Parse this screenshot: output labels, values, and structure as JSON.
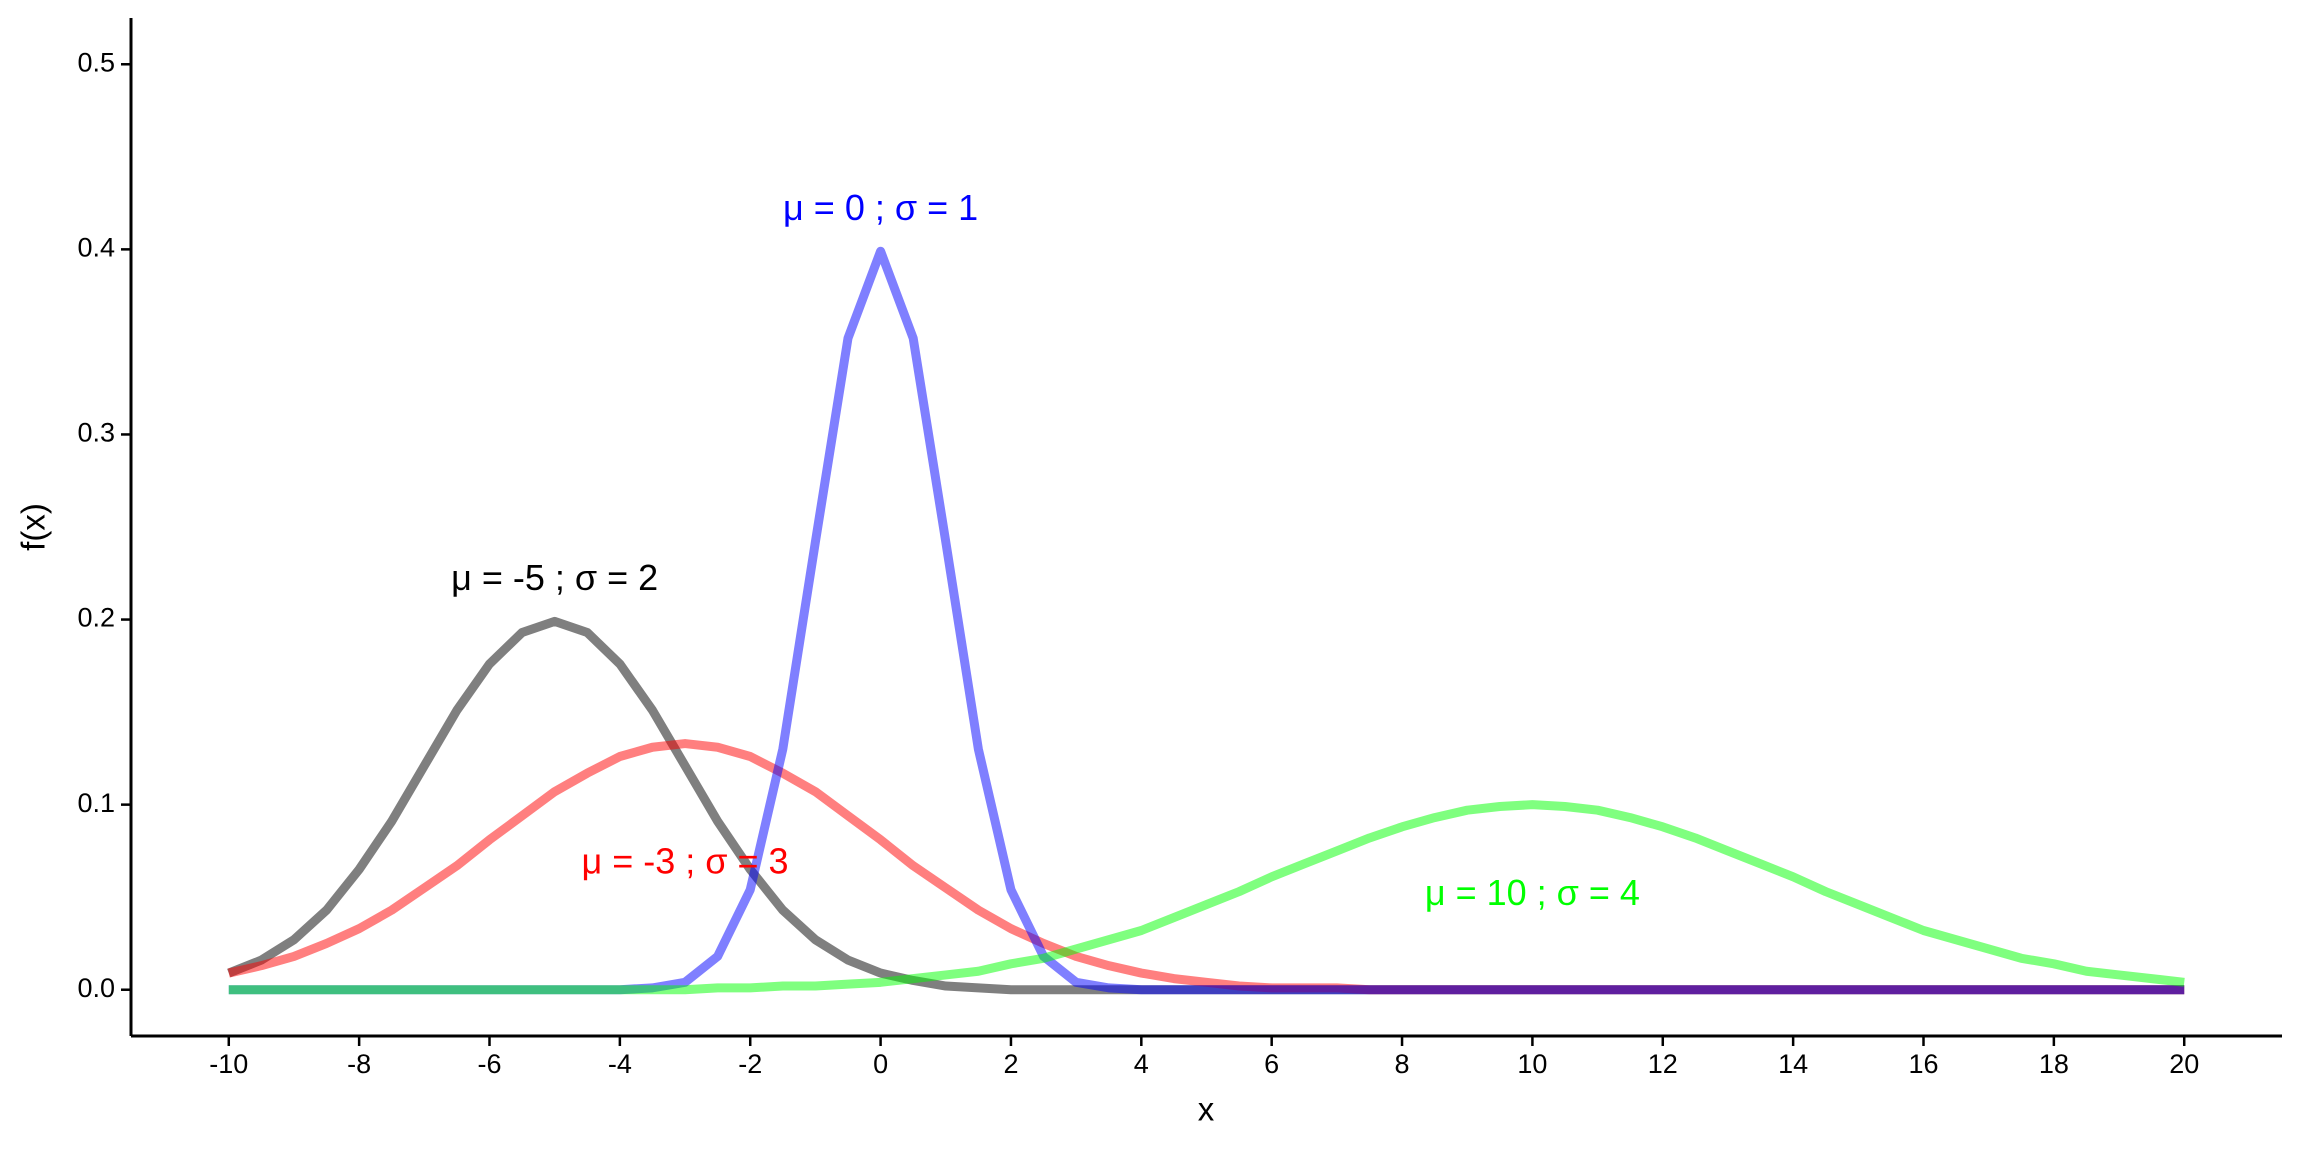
{
  "chart_data": {
    "type": "line",
    "x_label": "x",
    "y_label": "f(x)",
    "x": [
      -10,
      -9.5,
      -9,
      -8.5,
      -8,
      -7.5,
      -7,
      -6.5,
      -6,
      -5.5,
      -5,
      -4.5,
      -4,
      -3.5,
      -3,
      -2.5,
      -2,
      -1.5,
      -1,
      -0.5,
      0,
      0.5,
      1,
      1.5,
      2,
      2.5,
      3,
      3.5,
      4,
      4.5,
      5,
      5.5,
      6,
      6.5,
      7,
      7.5,
      8,
      8.5,
      9,
      9.5,
      10,
      10.5,
      11,
      11.5,
      12,
      12.5,
      13,
      13.5,
      14,
      14.5,
      15,
      15.5,
      16,
      16.5,
      17,
      17.5,
      18,
      18.5,
      19,
      19.5,
      20
    ],
    "series": [
      {
        "color": "#000000",
        "opacity": 0.5,
        "values": [
          0.009,
          0.016,
          0.027,
          0.043,
          0.065,
          0.091,
          0.121,
          0.151,
          0.176,
          0.193,
          0.199,
          0.193,
          0.176,
          0.151,
          0.121,
          0.091,
          0.065,
          0.043,
          0.027,
          0.016,
          0.009,
          0.005,
          0.002,
          0.001,
          0,
          0,
          0,
          0,
          0,
          0,
          0,
          0,
          0,
          0,
          0,
          0,
          0,
          0,
          0,
          0,
          0,
          0,
          0,
          0,
          0,
          0,
          0,
          0,
          0,
          0,
          0,
          0,
          0,
          0,
          0,
          0,
          0,
          0,
          0,
          0,
          0
        ]
      },
      {
        "color": "#ff0000",
        "opacity": 0.5,
        "values": [
          0.009,
          0.013,
          0.018,
          0.025,
          0.033,
          0.043,
          0.055,
          0.067,
          0.081,
          0.094,
          0.107,
          0.117,
          0.126,
          0.131,
          0.133,
          0.131,
          0.126,
          0.117,
          0.107,
          0.094,
          0.081,
          0.067,
          0.055,
          0.043,
          0.033,
          0.025,
          0.018,
          0.013,
          0.009,
          0.006,
          0.004,
          0.002,
          0.001,
          0.001,
          0.001,
          0,
          0,
          0,
          0,
          0,
          0,
          0,
          0,
          0,
          0,
          0,
          0,
          0,
          0,
          0,
          0,
          0,
          0,
          0,
          0,
          0,
          0,
          0,
          0,
          0,
          0
        ]
      },
      {
        "color": "#0000ff",
        "opacity": 0.5,
        "values": [
          0,
          0,
          0,
          0,
          0,
          0,
          0,
          0,
          0,
          0,
          0,
          0,
          0,
          0.001,
          0.004,
          0.018,
          0.054,
          0.13,
          0.242,
          0.352,
          0.399,
          0.352,
          0.242,
          0.13,
          0.054,
          0.018,
          0.004,
          0.001,
          0,
          0,
          0,
          0,
          0,
          0,
          0,
          0,
          0,
          0,
          0,
          0,
          0,
          0,
          0,
          0,
          0,
          0,
          0,
          0,
          0,
          0,
          0,
          0,
          0,
          0,
          0,
          0,
          0,
          0,
          0,
          0,
          0
        ]
      },
      {
        "color": "#00ff00",
        "opacity": 0.5,
        "values": [
          0,
          0,
          0,
          0,
          0,
          0,
          0,
          0,
          0,
          0,
          0,
          0,
          0,
          0,
          0,
          0.001,
          0.001,
          0.002,
          0.002,
          0.003,
          0.004,
          0.006,
          0.008,
          0.01,
          0.014,
          0.017,
          0.022,
          0.027,
          0.032,
          0.039,
          0.046,
          0.053,
          0.061,
          0.068,
          0.075,
          0.082,
          0.088,
          0.093,
          0.097,
          0.099,
          0.1,
          0.099,
          0.097,
          0.093,
          0.088,
          0.082,
          0.075,
          0.068,
          0.061,
          0.053,
          0.046,
          0.039,
          0.032,
          0.027,
          0.022,
          0.017,
          0.014,
          0.01,
          0.008,
          0.006,
          0.004
        ]
      }
    ],
    "annotations": [
      {
        "text": "μ = -5 ; σ = 2",
        "x": -5,
        "y": 0.221,
        "color": "#000000"
      },
      {
        "text": "μ = -3 ; σ = 3",
        "x": -3,
        "y": 0.068,
        "color": "#ff0000"
      },
      {
        "text": "μ = 0 ; σ = 1",
        "x": 0,
        "y": 0.421,
        "color": "#0000ff"
      },
      {
        "text": "μ = 10 ; σ = 4",
        "x": 10,
        "y": 0.051,
        "color": "#00ff00"
      }
    ],
    "xlim": [
      -11.5,
      21.5
    ],
    "ylim": [
      -0.025,
      0.525
    ],
    "xticks": [
      -10,
      -8,
      -6,
      -4,
      -2,
      0,
      2,
      4,
      6,
      8,
      10,
      12,
      14,
      16,
      18,
      20
    ],
    "yticks": [
      {
        "value": 0,
        "label": "0.0"
      },
      0.1,
      0.2,
      0.3,
      0.4,
      0.5
    ],
    "grid": false,
    "line_width": 9
  }
}
